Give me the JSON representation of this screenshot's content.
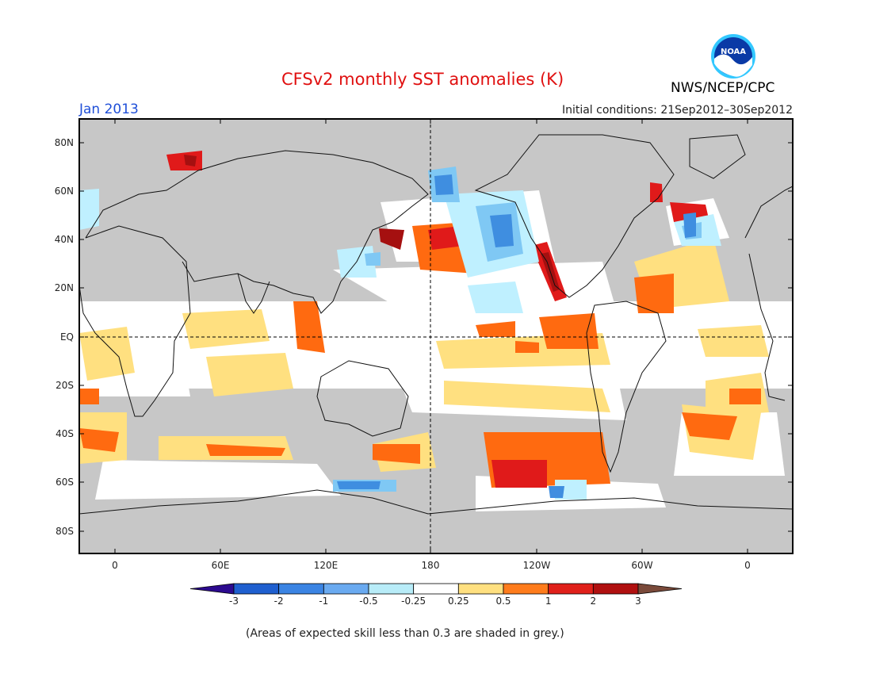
{
  "header": {
    "title": "CFSv2 monthly SST anomalies (K)",
    "month": "Jan 2013",
    "initial_conditions": "Initial conditions: 21Sep2012–30Sep2012",
    "agency": "NWS/NCEP/CPC",
    "logo_text": "NOAA"
  },
  "map": {
    "lat_labels": [
      "80N",
      "60N",
      "40N",
      "20N",
      "EQ",
      "20S",
      "40S",
      "60S",
      "80S"
    ],
    "lon_labels": [
      "0",
      "60E",
      "120E",
      "180",
      "120W",
      "60W",
      "0"
    ],
    "colors": {
      "land": "#c7c7c7",
      "neutral": "#ffffff",
      "warm_025": "#ffe080",
      "warm_05": "#ff6a10",
      "warm_1": "#e01a1a",
      "warm_2": "#a51010",
      "cool_025": "#bff0ff",
      "cool_05": "#7fc8f4",
      "cool_1": "#3f8ee0",
      "cool_2": "#1f60c8"
    }
  },
  "colorbar": {
    "levels": [
      "-3",
      "-2",
      "-1",
      "-0.5",
      "-0.25",
      "0.25",
      "0.5",
      "1",
      "2",
      "3"
    ],
    "colors": [
      "#2c0a8f",
      "#1f5fcf",
      "#3b84e3",
      "#6aaaf0",
      "#b8ecf8",
      "#ffffff",
      "#ffe080",
      "#ff7c1c",
      "#e0201a",
      "#b01010",
      "#7a4a3a"
    ]
  },
  "footer": {
    "note": "(Areas of expected skill less than 0.3 are shaded in grey.)"
  }
}
